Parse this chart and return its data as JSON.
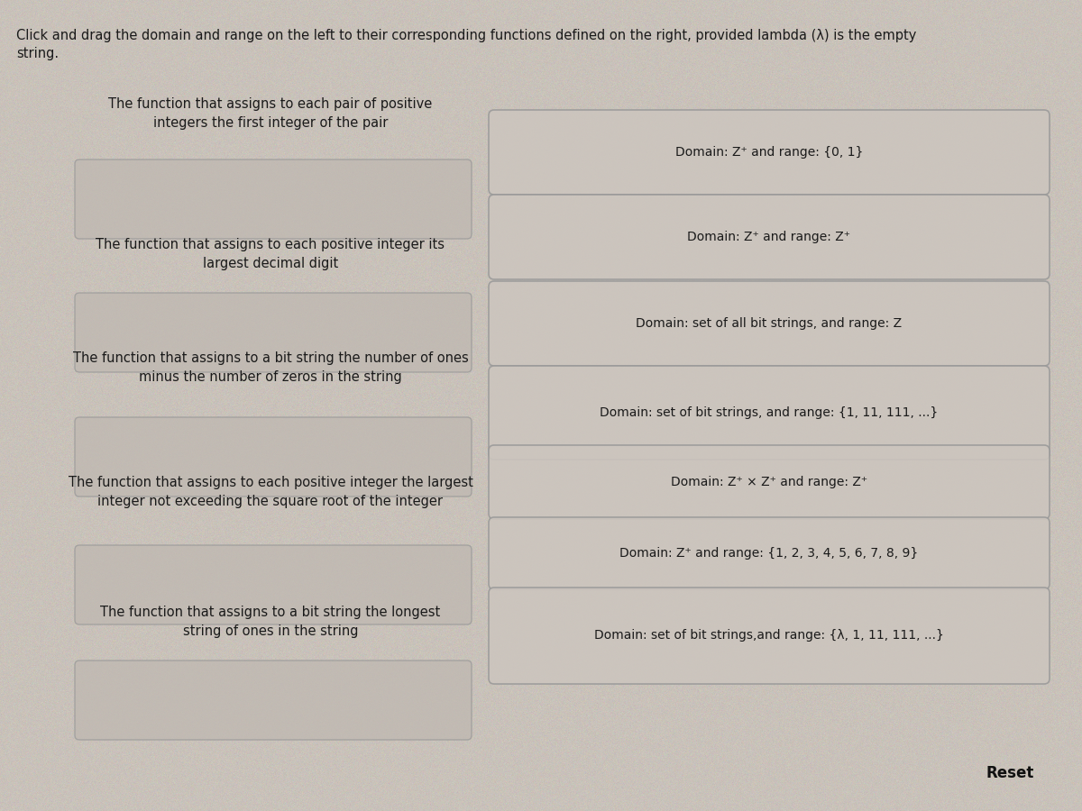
{
  "bg_color": "#c9c2ba",
  "title_text": "Click and drag the domain and range on the left to their corresponding functions defined on the right, provided lambda (λ) is the empty\nstring.",
  "title_fontsize": 10.5,
  "title_color": "#1a1a1a",
  "left_functions": [
    "The function that assigns to each pair of positive\nintegers the first integer of the pair",
    "The function that assigns to each positive integer its\nlargest decimal digit",
    "The function that assigns to a bit string the number of ones\nminus the number of zeros in the string",
    "The function that assigns to each positive integer the largest\ninteger not exceeding the square root of the integer",
    "The function that assigns to a bit string the longest\nstring of ones in the string"
  ],
  "right_boxes": [
    "Domain: Z⁺ and range: {0, 1}",
    "Domain: Z⁺ and range: Z⁺",
    "Domain: set of all bit strings, and range: Z",
    "Domain: set of bit strings, and range: {1, 11, 111, ...}",
    "Domain: Z⁺ × Z⁺ and range: Z⁺",
    "Domain: Z⁺ and range: {1, 2, 3, 4, 5, 6, 7, 8, 9}",
    "Domain: set of bit strings,and range: {λ, 1, 11, 111, ...}"
  ],
  "box_bg": "#ccc5be",
  "box_edge": "#999999",
  "text_color": "#1a1a1a",
  "reset_text": "Reset",
  "reset_color": "#111111",
  "left_box_bg": "#c0b9b2",
  "left_drop_box_bg": "#bfb8b1"
}
